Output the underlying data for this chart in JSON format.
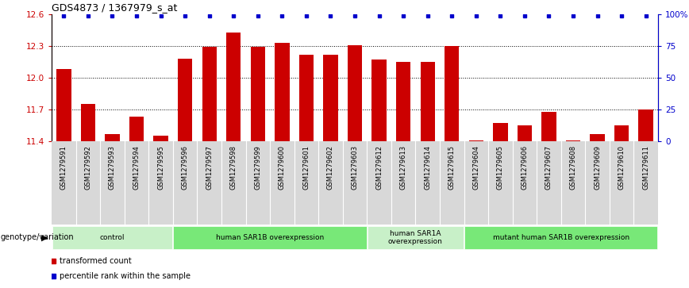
{
  "title": "GDS4873 / 1367979_s_at",
  "samples": [
    "GSM1279591",
    "GSM1279592",
    "GSM1279593",
    "GSM1279594",
    "GSM1279595",
    "GSM1279596",
    "GSM1279597",
    "GSM1279598",
    "GSM1279599",
    "GSM1279600",
    "GSM1279601",
    "GSM1279602",
    "GSM1279603",
    "GSM1279612",
    "GSM1279613",
    "GSM1279614",
    "GSM1279615",
    "GSM1279604",
    "GSM1279605",
    "GSM1279606",
    "GSM1279607",
    "GSM1279608",
    "GSM1279609",
    "GSM1279610",
    "GSM1279611"
  ],
  "transformed_count": [
    12.08,
    11.75,
    11.47,
    11.63,
    11.45,
    12.18,
    12.29,
    12.43,
    12.29,
    12.33,
    12.22,
    12.22,
    12.31,
    12.17,
    12.15,
    12.15,
    12.3,
    11.41,
    11.57,
    11.55,
    11.68,
    11.41,
    11.47,
    11.55,
    11.7
  ],
  "percentile_rank": [
    99,
    99,
    99,
    99,
    99,
    99,
    99,
    99,
    99,
    99,
    99,
    99,
    99,
    99,
    99,
    99,
    99,
    99,
    99,
    99,
    99,
    99,
    99,
    99,
    99
  ],
  "groups": [
    {
      "label": "control",
      "start": 0,
      "end": 5,
      "color": "#c8f0c8"
    },
    {
      "label": "human SAR1B overexpression",
      "start": 5,
      "end": 13,
      "color": "#78e878"
    },
    {
      "label": "human SAR1A\noverexpression",
      "start": 13,
      "end": 17,
      "color": "#c8f0c8"
    },
    {
      "label": "mutant human SAR1B overexpression",
      "start": 17,
      "end": 25,
      "color": "#78e878"
    }
  ],
  "bar_color": "#cc0000",
  "dot_color": "#0000cc",
  "ylim_left": [
    11.4,
    12.6
  ],
  "ylim_right": [
    0,
    100
  ],
  "yticks_left": [
    11.4,
    11.7,
    12.0,
    12.3,
    12.6
  ],
  "yticks_right": [
    0,
    25,
    50,
    75,
    100
  ],
  "ytick_labels_right": [
    "0",
    "25",
    "50",
    "75",
    "100%"
  ],
  "dotted_lines": [
    11.7,
    12.0,
    12.3
  ],
  "genotype_label": "genotype/variation",
  "legend_items": [
    {
      "color": "#cc0000",
      "label": "transformed count"
    },
    {
      "color": "#0000cc",
      "label": "percentile rank within the sample"
    }
  ]
}
